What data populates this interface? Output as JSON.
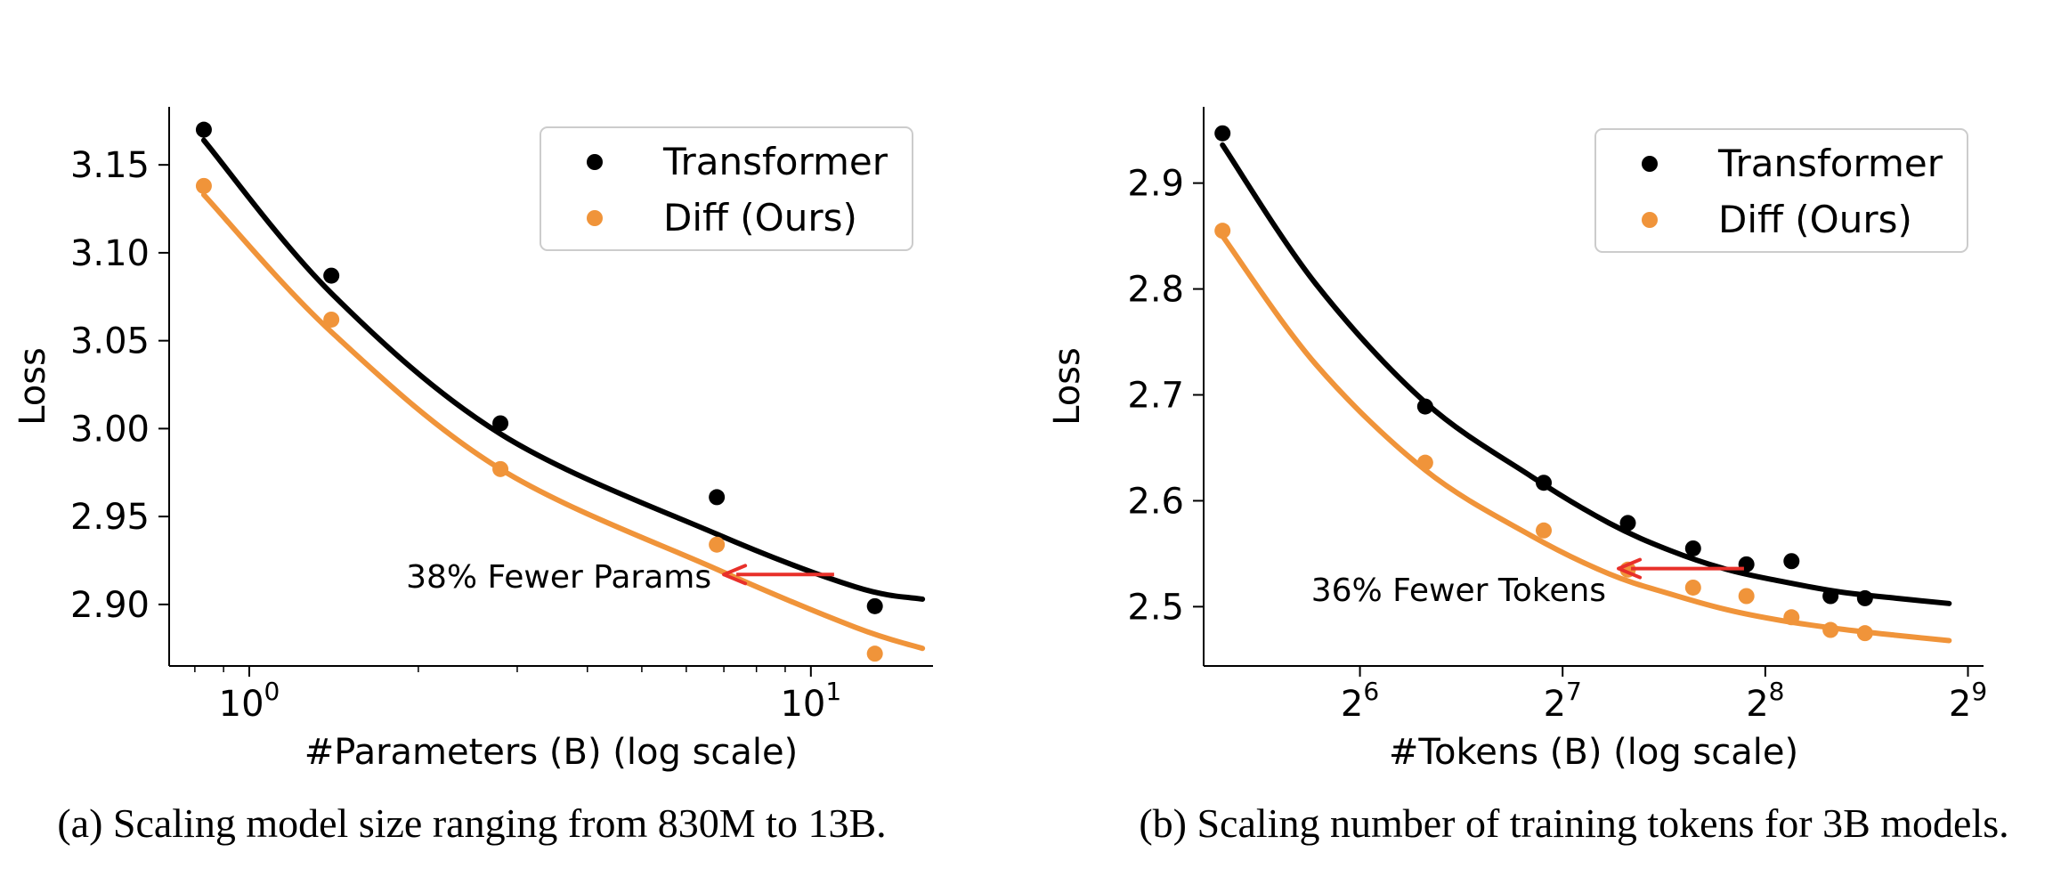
{
  "colors": {
    "transformer": "#000000",
    "diff": "#F0943A",
    "arrow": "#E8302A"
  },
  "chart_data": [
    {
      "type": "scatter",
      "xscale": "log10",
      "xlabel": "#Parameters (B) (log scale)",
      "ylabel": "Loss",
      "xlim": [
        0.72,
        16.5
      ],
      "ylim": [
        2.865,
        3.183
      ],
      "yticks": [
        2.9,
        2.95,
        3.0,
        3.05,
        3.1,
        3.15
      ],
      "ytick_labels": [
        "2.90",
        "2.95",
        "3.00",
        "3.05",
        "3.10",
        "3.15"
      ],
      "xticks": [
        1,
        10
      ],
      "xtick_labels": [
        {
          "base": "10",
          "exp": "0"
        },
        {
          "base": "10",
          "exp": "1"
        }
      ],
      "legend": {
        "position": "top-right"
      },
      "series": [
        {
          "name": "Transformer",
          "color": "#000000",
          "x": [
            0.83,
            1.4,
            2.8,
            6.8,
            13.0
          ],
          "y": [
            3.17,
            3.087,
            3.003,
            2.961,
            2.899
          ],
          "fit_y": [
            3.164,
            3.077,
            2.997,
            2.94,
            2.91,
            2.903
          ]
        },
        {
          "name": "Diff (Ours)",
          "color": "#F0943A",
          "x": [
            0.83,
            1.4,
            2.8,
            6.8,
            13.0
          ],
          "y": [
            3.138,
            3.062,
            2.977,
            2.934,
            2.872
          ],
          "fit_y": [
            3.133,
            3.055,
            2.977,
            2.92,
            2.887,
            2.875
          ]
        }
      ],
      "fit_x": [
        0.83,
        1.4,
        2.8,
        6.8,
        12.0,
        15.8
      ],
      "annotation": {
        "text": "38% Fewer Params",
        "arrow_from": [
          11.0,
          2.917
        ],
        "arrow_to": [
          7.0,
          2.917
        ]
      },
      "caption": "(a) Scaling model size ranging from 830M to 13B."
    },
    {
      "type": "scatter",
      "xscale": "log2",
      "xlabel": "#Tokens (B) (log scale)",
      "ylabel": "Loss",
      "xlim": [
        37.5,
        540
      ],
      "ylim": [
        2.444,
        2.972
      ],
      "yticks": [
        2.5,
        2.6,
        2.7,
        2.8,
        2.9
      ],
      "ytick_labels": [
        "2.5",
        "2.6",
        "2.7",
        "2.8",
        "2.9"
      ],
      "xticks": [
        64,
        128,
        256,
        512
      ],
      "xtick_labels": [
        {
          "base": "2",
          "exp": "6"
        },
        {
          "base": "2",
          "exp": "7"
        },
        {
          "base": "2",
          "exp": "8"
        },
        {
          "base": "2",
          "exp": "9"
        }
      ],
      "legend": {
        "position": "top-right"
      },
      "series": [
        {
          "name": "Transformer",
          "color": "#000000",
          "x": [
            40,
            80,
            120,
            160,
            200,
            240,
            280,
            320,
            360
          ],
          "y": [
            2.947,
            2.689,
            2.617,
            2.579,
            2.555,
            2.54,
            2.543,
            2.51,
            2.508
          ],
          "fit_y": [
            2.936,
            2.805,
            2.693,
            2.623,
            2.579,
            2.553,
            2.535,
            2.524,
            2.514,
            2.508,
            2.503
          ]
        },
        {
          "name": "Diff (Ours)",
          "color": "#F0943A",
          "x": [
            40,
            80,
            120,
            160,
            200,
            240,
            280,
            320,
            360
          ],
          "y": [
            2.855,
            2.636,
            2.572,
            2.535,
            2.518,
            2.51,
            2.49,
            2.478,
            2.475
          ],
          "fit_y": [
            2.85,
            2.729,
            2.629,
            2.567,
            2.531,
            2.512,
            2.497,
            2.487,
            2.479,
            2.473,
            2.468
          ]
        }
      ],
      "fit_x": [
        40,
        55,
        80,
        115,
        150,
        185,
        225,
        270,
        330,
        400,
        480
      ],
      "annotation": {
        "text": "36% Fewer Tokens",
        "arrow_from": [
          238,
          2.536
        ],
        "arrow_to": [
          155,
          2.536
        ]
      },
      "caption": "(b) Scaling number of training tokens for 3B models."
    }
  ]
}
